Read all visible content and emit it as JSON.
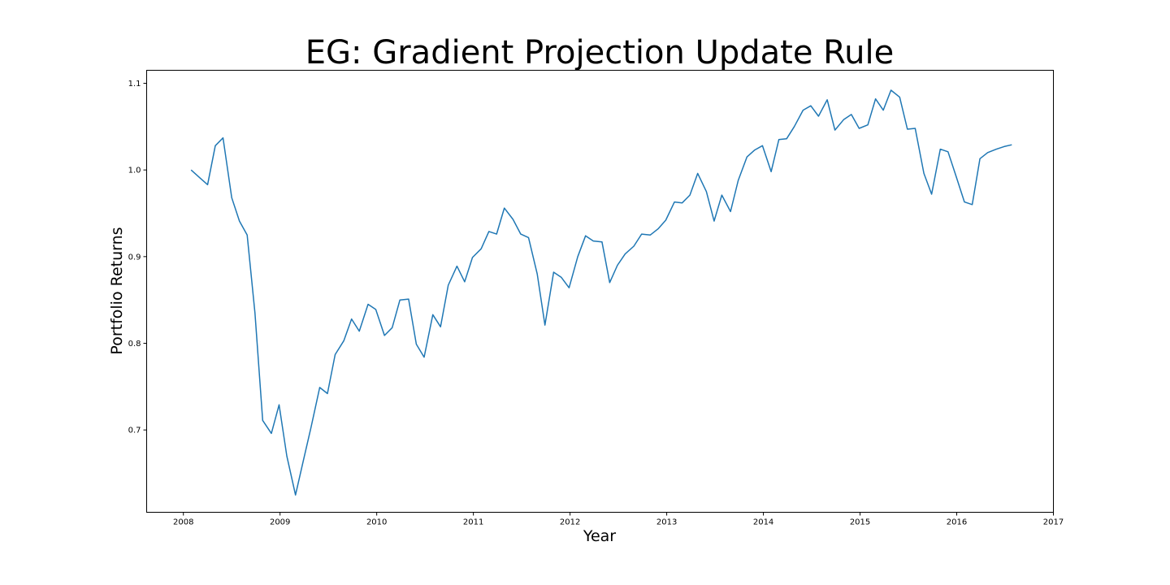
{
  "chart_data": {
    "type": "line",
    "title": "EG: Gradient Projection Update Rule",
    "xlabel": "Year",
    "ylabel": "Portfolio Returns",
    "xlim": [
      2007.62,
      2017.0
    ],
    "ylim": [
      0.605,
      1.115
    ],
    "grid": false,
    "x_ticks": [
      {
        "value": 2008,
        "label": "2008"
      },
      {
        "value": 2009,
        "label": "2009"
      },
      {
        "value": 2010,
        "label": "2010"
      },
      {
        "value": 2011,
        "label": "2011"
      },
      {
        "value": 2012,
        "label": "2012"
      },
      {
        "value": 2013,
        "label": "2013"
      },
      {
        "value": 2014,
        "label": "2014"
      },
      {
        "value": 2015,
        "label": "2015"
      },
      {
        "value": 2016,
        "label": "2016"
      },
      {
        "value": 2017,
        "label": "2017"
      }
    ],
    "y_ticks": [
      {
        "value": 0.7,
        "label": "0.7"
      },
      {
        "value": 0.8,
        "label": "0.8"
      },
      {
        "value": 0.9,
        "label": "0.9"
      },
      {
        "value": 1.0,
        "label": "1.0"
      },
      {
        "value": 1.1,
        "label": "1.1"
      }
    ],
    "colors": {
      "line": "#1f77b4",
      "axes": "#000000",
      "background": "#ffffff"
    },
    "series": [
      {
        "x": [
          2008.08,
          2008.17,
          2008.25,
          2008.33,
          2008.41,
          2008.5,
          2008.58,
          2008.66,
          2008.74,
          2008.82,
          2008.91,
          2008.99,
          2009.07,
          2009.16,
          2009.24,
          2009.32,
          2009.41,
          2009.49,
          2009.57,
          2009.66,
          2009.74,
          2009.82,
          2009.91,
          2009.99,
          2010.08,
          2010.16,
          2010.24,
          2010.33,
          2010.41,
          2010.49,
          2010.58,
          2010.66,
          2010.74,
          2010.83,
          2010.91,
          2010.99,
          2011.08,
          2011.16,
          2011.24,
          2011.32,
          2011.41,
          2011.49,
          2011.57,
          2011.66,
          2011.74,
          2011.83,
          2011.91,
          2011.99,
          2012.08,
          2012.16,
          2012.24,
          2012.33,
          2012.41,
          2012.49,
          2012.57,
          2012.66,
          2012.74,
          2012.83,
          2012.91,
          2012.99,
          2013.08,
          2013.16,
          2013.24,
          2013.32,
          2013.41,
          2013.49,
          2013.57,
          2013.66,
          2013.74,
          2013.83,
          2013.91,
          2013.99,
          2014.08,
          2014.16,
          2014.24,
          2014.32,
          2014.41,
          2014.49,
          2014.57,
          2014.66,
          2014.74,
          2014.83,
          2014.91,
          2014.99,
          2015.08,
          2015.16,
          2015.24,
          2015.32,
          2015.41,
          2015.49,
          2015.57,
          2015.66,
          2015.74,
          2015.83,
          2015.91,
          2015.99,
          2016.08,
          2016.16,
          2016.24,
          2016.32,
          2016.41,
          2016.49,
          2016.57
        ],
        "y": [
          1.0,
          0.991,
          0.983,
          1.028,
          1.037,
          0.968,
          0.941,
          0.925,
          0.835,
          0.711,
          0.696,
          0.729,
          0.67,
          0.625,
          0.664,
          0.703,
          0.749,
          0.742,
          0.787,
          0.803,
          0.828,
          0.814,
          0.845,
          0.839,
          0.809,
          0.818,
          0.85,
          0.851,
          0.799,
          0.784,
          0.833,
          0.819,
          0.867,
          0.889,
          0.871,
          0.899,
          0.909,
          0.929,
          0.926,
          0.956,
          0.943,
          0.926,
          0.922,
          0.88,
          0.821,
          0.882,
          0.876,
          0.864,
          0.9,
          0.924,
          0.918,
          0.917,
          0.87,
          0.89,
          0.903,
          0.912,
          0.926,
          0.925,
          0.932,
          0.942,
          0.963,
          0.962,
          0.971,
          0.996,
          0.975,
          0.941,
          0.971,
          0.952,
          0.988,
          1.015,
          1.023,
          1.028,
          0.998,
          1.035,
          1.036,
          1.05,
          1.069,
          1.074,
          1.062,
          1.081,
          1.046,
          1.058,
          1.064,
          1.048,
          1.052,
          1.082,
          1.069,
          1.092,
          1.084,
          1.047,
          1.048,
          0.996,
          0.972,
          1.024,
          1.021,
          0.994,
          0.963,
          0.96,
          1.013,
          1.02,
          1.024,
          1.027,
          1.029
        ]
      }
    ]
  }
}
